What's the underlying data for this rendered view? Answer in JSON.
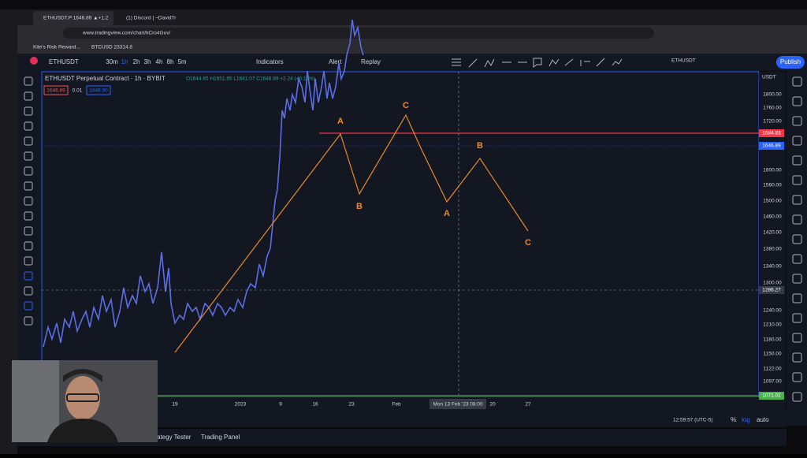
{
  "browser": {
    "tabs": [
      "ETHUSDT.P 1646.89 ▲+1.2",
      "(1) Discord | ~DavidTr"
    ],
    "url": "www.tradingview.com/chart/kCro4Guv/",
    "bookmarks": [
      "Kite's Risk Reward...",
      "BTCUSD 23314.8"
    ]
  },
  "toolbar": {
    "symbol": "ETHUSDT",
    "intervals": [
      "30m",
      "1h",
      "2h",
      "3h",
      "4h",
      "8h",
      "5m"
    ],
    "buttons": [
      "Indicators",
      "Alert",
      "Replay"
    ],
    "watch_symbol": "ETHUSDT",
    "publish": "Publish"
  },
  "chart": {
    "title": "ETHUSDT Perpetual Contract · 1h · BYBIT",
    "ohlc": "O1644.65 H1651.65 L1641.07 C1646.89 +2.24 (+0.14%)",
    "bid": "1646.89",
    "spread": "0.01",
    "ask": "1646.90",
    "currency": "USDT",
    "price_labels": [
      "1800.00",
      "1760.00",
      "1720.00",
      "1600.00",
      "1560.00",
      "1500.00",
      "1460.00",
      "1420.00",
      "1380.00",
      "1340.00",
      "1300.00",
      "1240.00",
      "1210.00",
      "1180.00",
      "1150.00",
      "1122.00",
      "1097.00"
    ],
    "tags": [
      "1684.83",
      "1646.89",
      "1286.27",
      "1071.02"
    ],
    "time_labels": [
      "19",
      "2023",
      "9",
      "16",
      "23",
      "Feb",
      "20",
      "27"
    ],
    "crosshair_time": "Mon 13 Feb '23   08:00",
    "waves": [
      "A",
      "C",
      "B",
      "A",
      "B",
      "C"
    ]
  },
  "status": {
    "clock": "12:59:57 (UTC-5)",
    "options": [
      "%",
      "log",
      "auto"
    ],
    "panels": [
      "ategy Tester",
      "Trading Panel"
    ]
  }
}
